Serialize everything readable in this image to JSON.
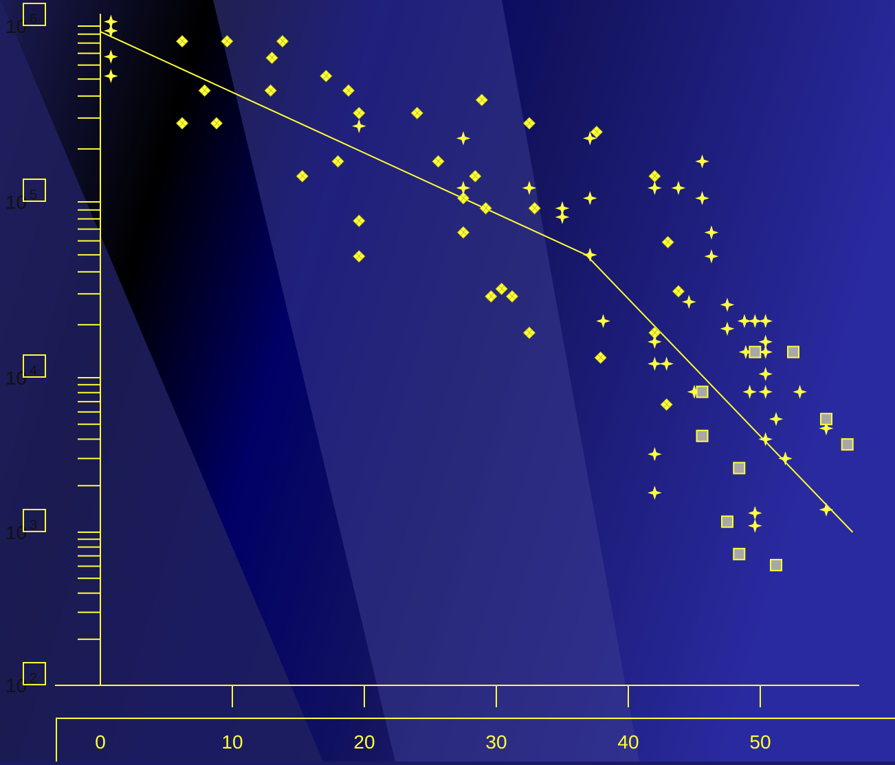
{
  "colors": {
    "foreground": "#ffff33",
    "marker_fill": "#ffff44",
    "square_fill": "#a8a8a8",
    "background_dark": "#000000",
    "background_navy": "#000066",
    "background_blue": "#25249a",
    "background_light": "#34348a"
  },
  "chart_data": {
    "type": "scatter",
    "title": "",
    "xlabel": "",
    "ylabel": "",
    "y_scale": "log",
    "xlim": [
      0,
      55
    ],
    "ylim": [
      100,
      1000000
    ],
    "grid": false,
    "legend": "none",
    "x_ticks": [
      0,
      10,
      20,
      30,
      40,
      50
    ],
    "x_tick_labels": [
      "0",
      "10",
      "20",
      "30",
      "40",
      "50"
    ],
    "y_ticks": [
      100,
      1000,
      10000,
      100000,
      1000000
    ],
    "y_tick_labels": [
      {
        "base": "10",
        "exp": "2"
      },
      {
        "base": "10",
        "exp": "3"
      },
      {
        "base": "10",
        "exp": "4"
      },
      {
        "base": "10",
        "exp": "5"
      },
      {
        "base": "10",
        "exp": "6"
      }
    ],
    "series": [
      {
        "marker": "diamond-cluster",
        "points": [
          [
            6.2,
            820000
          ],
          [
            9.6,
            820000
          ],
          [
            13.8,
            820000
          ],
          [
            13.0,
            660000
          ],
          [
            7.9,
            430000
          ],
          [
            12.9,
            430000
          ],
          [
            6.2,
            280000
          ],
          [
            8.8,
            280000
          ],
          [
            17.1,
            520000
          ],
          [
            18.8,
            430000
          ],
          [
            19.6,
            320000
          ],
          [
            24.0,
            320000
          ],
          [
            28.9,
            380000
          ],
          [
            32.5,
            280000
          ],
          [
            37.6,
            250000
          ],
          [
            15.3,
            140000
          ],
          [
            18.0,
            170000
          ],
          [
            25.6,
            170000
          ],
          [
            28.4,
            140000
          ],
          [
            27.5,
            105000
          ],
          [
            29.2,
            92000
          ],
          [
            32.9,
            92000
          ],
          [
            19.6,
            78000
          ],
          [
            27.5,
            67000
          ],
          [
            19.6,
            49000
          ],
          [
            29.6,
            29000
          ],
          [
            30.4,
            32000
          ],
          [
            31.2,
            29000
          ],
          [
            32.5,
            18000
          ],
          [
            37.9,
            13000
          ],
          [
            42.0,
            18000
          ],
          [
            42.0,
            140000
          ],
          [
            43.0,
            59000
          ],
          [
            43.8,
            31000
          ],
          [
            42.9,
            6700
          ]
        ]
      },
      {
        "marker": "four-point-star",
        "points": [
          [
            0.8,
            1060000
          ],
          [
            0.8,
            940000
          ],
          [
            0.8,
            670000
          ],
          [
            0.8,
            520000
          ],
          [
            19.6,
            270000
          ],
          [
            27.5,
            230000
          ],
          [
            27.5,
            120000
          ],
          [
            32.5,
            120000
          ],
          [
            35.0,
            92000
          ],
          [
            35.0,
            82000
          ],
          [
            37.1,
            230000
          ],
          [
            37.1,
            105000
          ],
          [
            37.1,
            50000
          ],
          [
            38.1,
            21000
          ],
          [
            42.0,
            120000
          ],
          [
            43.8,
            120000
          ],
          [
            44.6,
            27000
          ],
          [
            45.6,
            170000
          ],
          [
            45.6,
            105000
          ],
          [
            46.3,
            67000
          ],
          [
            46.3,
            49000
          ],
          [
            47.5,
            26000
          ],
          [
            47.5,
            19000
          ],
          [
            48.8,
            21000
          ],
          [
            48.9,
            14000
          ],
          [
            49.6,
            21000
          ],
          [
            50.4,
            21000
          ],
          [
            50.4,
            16000
          ],
          [
            50.4,
            14000
          ],
          [
            50.4,
            10500
          ],
          [
            50.4,
            8100
          ],
          [
            49.2,
            8100
          ],
          [
            45.0,
            8100
          ],
          [
            42.0,
            16000
          ],
          [
            42.0,
            12000
          ],
          [
            42.9,
            12000
          ],
          [
            51.2,
            5400
          ],
          [
            53.0,
            8100
          ],
          [
            55.0,
            4700
          ],
          [
            51.9,
            3000
          ],
          [
            49.6,
            1330
          ],
          [
            49.6,
            1100
          ],
          [
            55.0,
            1400
          ],
          [
            42.0,
            1800
          ],
          [
            42.0,
            3200
          ],
          [
            50.4,
            4000
          ]
        ]
      },
      {
        "marker": "square",
        "points": [
          [
            49.6,
            14000
          ],
          [
            52.5,
            14000
          ],
          [
            45.6,
            8100
          ],
          [
            45.6,
            4200
          ],
          [
            48.4,
            2600
          ],
          [
            47.5,
            1170
          ],
          [
            48.4,
            720
          ],
          [
            51.2,
            610
          ],
          [
            55.0,
            5400
          ],
          [
            56.6,
            3700
          ]
        ]
      }
    ],
    "fit_line": [
      [
        0,
        930000
      ],
      [
        36.8,
        50000
      ],
      [
        57,
        1000
      ]
    ]
  }
}
